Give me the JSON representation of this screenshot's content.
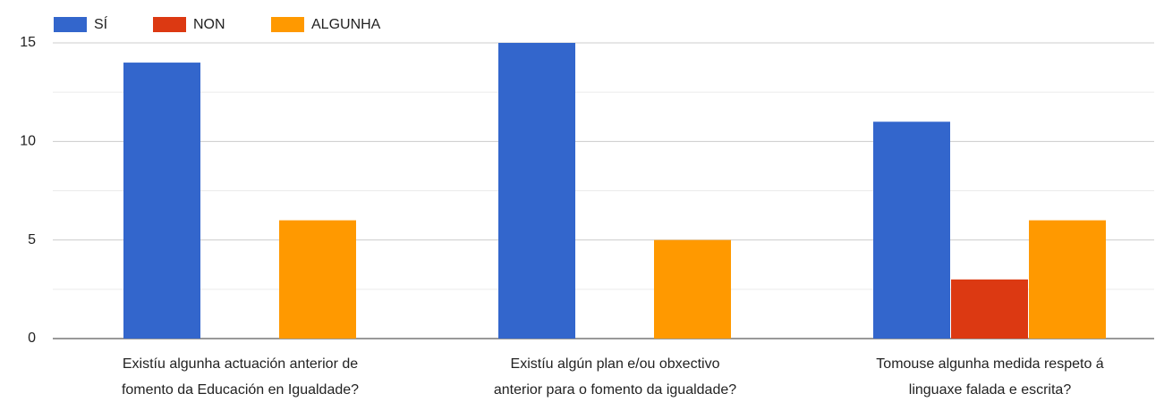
{
  "chart_data": {
    "type": "bar",
    "categories": [
      [
        "Existíu algunha actuación anterior de",
        "fomento da Educación en Igualdade?"
      ],
      [
        "Existíu algún plan e/ou obxectivo",
        "anterior para o fomento da igualdade?"
      ],
      [
        "Tomouse algunha medida respeto á",
        "linguaxe falada e escrita?"
      ]
    ],
    "series": [
      {
        "name": "SÍ",
        "color": "#3366cc",
        "values": [
          14,
          15,
          11
        ]
      },
      {
        "name": "NON",
        "color": "#dc3912",
        "values": [
          0,
          0,
          3
        ]
      },
      {
        "name": "ALGUNHA",
        "color": "#ff9900",
        "values": [
          6,
          5,
          6
        ]
      }
    ],
    "ylim": [
      0,
      15
    ],
    "yticks": [
      0,
      5,
      10,
      15
    ],
    "minor_gridlines": [
      2.5,
      7.5,
      12.5
    ],
    "grid": true,
    "legend": "top-left"
  }
}
